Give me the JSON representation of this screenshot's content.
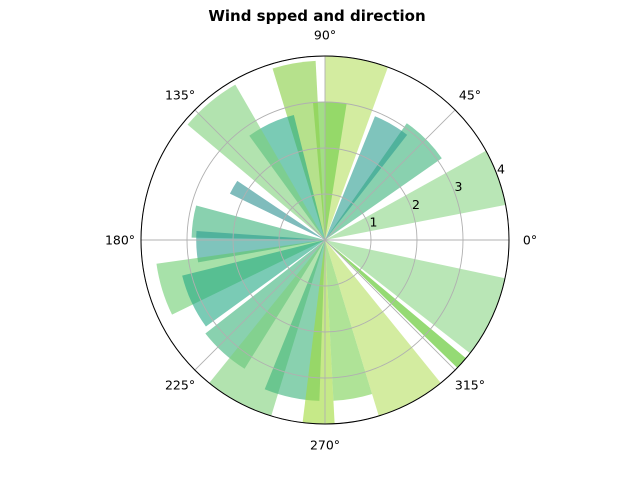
{
  "chart_data": {
    "type": "polar-bar",
    "title": "Wind spped and direction",
    "theta_tick_labels": [
      "0°",
      "45°",
      "90°",
      "135°",
      "180°",
      "225°",
      "270°",
      "315°"
    ],
    "r_tick_labels": [
      "1",
      "2",
      "3",
      "4"
    ],
    "r_ticks": [
      1,
      2,
      3,
      4
    ],
    "rlim": [
      0,
      4.0
    ],
    "grid": true,
    "bars": [
      {
        "theta_deg": 20,
        "width_deg": 18,
        "r": 4.0,
        "color": "#7fd17a",
        "alpha": 0.55
      },
      {
        "theta_deg": 45,
        "width_deg": 20,
        "r": 3.1,
        "color": "#3bb37a",
        "alpha": 0.6
      },
      {
        "theta_deg": 60,
        "width_deg": 16,
        "r": 2.9,
        "color": "#2a9d8f",
        "alpha": 0.6
      },
      {
        "theta_deg": 80,
        "width_deg": 20,
        "r": 4.3,
        "color": "#b5e061",
        "alpha": 0.6
      },
      {
        "theta_deg": 88,
        "width_deg": 14,
        "r": 3.0,
        "color": "#7ad151",
        "alpha": 0.7
      },
      {
        "theta_deg": 100,
        "width_deg": 14,
        "r": 3.9,
        "color": "#8fd14f",
        "alpha": 0.65
      },
      {
        "theta_deg": 115,
        "width_deg": 22,
        "r": 2.8,
        "color": "#22a884",
        "alpha": 0.6
      },
      {
        "theta_deg": 130,
        "width_deg": 20,
        "r": 3.9,
        "color": "#7fd17a",
        "alpha": 0.6
      },
      {
        "theta_deg": 150,
        "width_deg": 8,
        "r": 2.3,
        "color": "#2a8f8f",
        "alpha": 0.6
      },
      {
        "theta_deg": 172,
        "width_deg": 14,
        "r": 2.9,
        "color": "#3bb37a",
        "alpha": 0.6
      },
      {
        "theta_deg": 183,
        "width_deg": 14,
        "r": 2.8,
        "color": "#2a9d8f",
        "alpha": 0.6
      },
      {
        "theta_deg": 197,
        "width_deg": 18,
        "r": 3.7,
        "color": "#5ec962",
        "alpha": 0.55
      },
      {
        "theta_deg": 205,
        "width_deg": 22,
        "r": 3.2,
        "color": "#22a884",
        "alpha": 0.6
      },
      {
        "theta_deg": 228,
        "width_deg": 20,
        "r": 3.3,
        "color": "#3bb37a",
        "alpha": 0.6
      },
      {
        "theta_deg": 242,
        "width_deg": 22,
        "r": 4.0,
        "color": "#7fd17a",
        "alpha": 0.6
      },
      {
        "theta_deg": 258,
        "width_deg": 20,
        "r": 3.5,
        "color": "#3bb37a",
        "alpha": 0.6
      },
      {
        "theta_deg": 268,
        "width_deg": 10,
        "r": 4.2,
        "color": "#a0da39",
        "alpha": 0.6
      },
      {
        "theta_deg": 280,
        "width_deg": 14,
        "r": 3.5,
        "color": "#7ad151",
        "alpha": 0.6
      },
      {
        "theta_deg": 298,
        "width_deg": 22,
        "r": 4.3,
        "color": "#b5e061",
        "alpha": 0.6
      },
      {
        "theta_deg": 318,
        "width_deg": 4,
        "r": 4.0,
        "color": "#7ad151",
        "alpha": 0.8
      },
      {
        "theta_deg": 335,
        "width_deg": 26,
        "r": 4.0,
        "color": "#7fd17a",
        "alpha": 0.55
      }
    ]
  }
}
